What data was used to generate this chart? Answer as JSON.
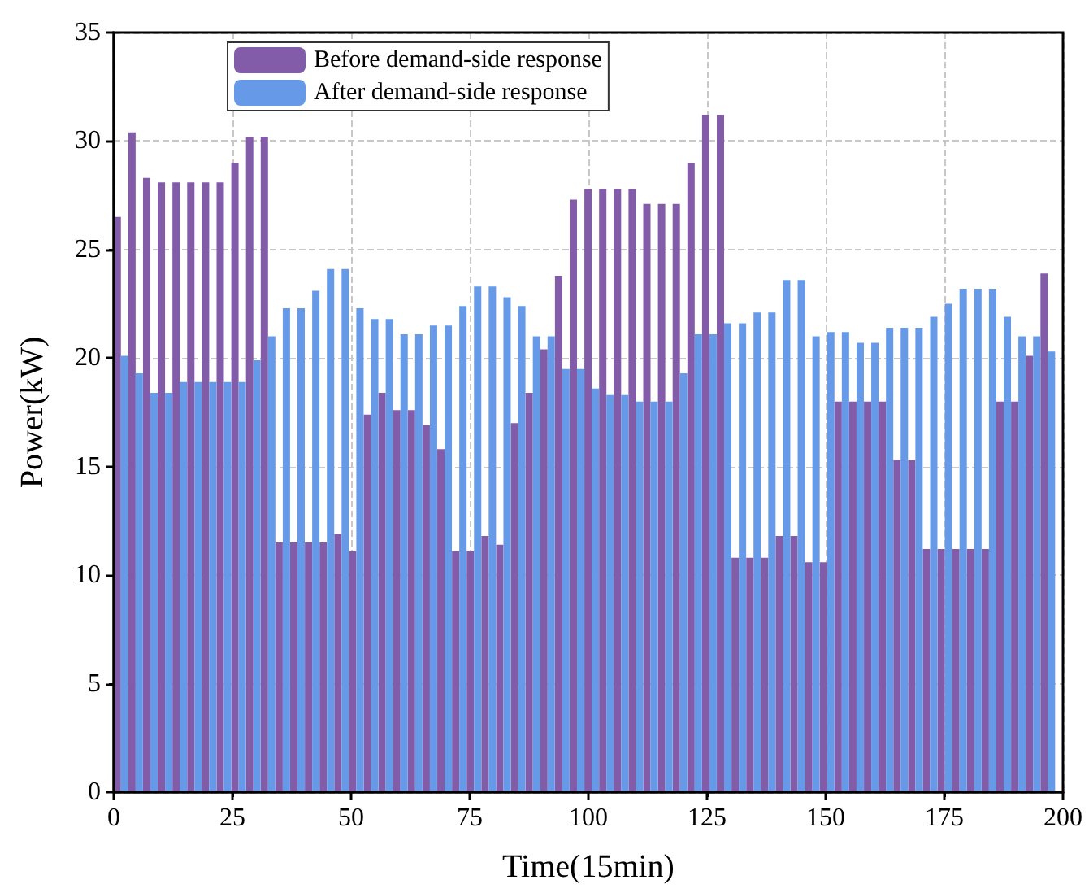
{
  "chart_data": {
    "type": "bar",
    "xlabel": "Time(15min)",
    "ylabel": "Power(kW)",
    "x": [
      1.5,
      4.6,
      7.7,
      10.8,
      13.9,
      17,
      20.1,
      23.2,
      26.3,
      29.4,
      32.5,
      35.6,
      38.7,
      41.8,
      44.9,
      48,
      51.1,
      54.2,
      57.3,
      60.4,
      63.5,
      66.6,
      69.7,
      72.8,
      75.9,
      79,
      82.1,
      85.2,
      88.3,
      91.4,
      94.5,
      97.6,
      100.7,
      103.8,
      106.9,
      110,
      113.1,
      116.2,
      119.3,
      122.4,
      125.5,
      128.6,
      131.7,
      134.8,
      137.9,
      141,
      144.1,
      147.2,
      150.3,
      153.4,
      156.5,
      159.6,
      162.7,
      165.8,
      168.9,
      172,
      175.1,
      178.2,
      181.3,
      184.4,
      187.5,
      190.6,
      193.7,
      196.8
    ],
    "series": [
      {
        "name": "Before demand-side response",
        "color": "#825ca8",
        "values": [
          26.5,
          30.4,
          28.3,
          28.1,
          28.1,
          28.1,
          28.1,
          28.1,
          29.0,
          30.2,
          30.2,
          11.5,
          11.5,
          11.5,
          11.5,
          11.9,
          11.1,
          17.4,
          18.4,
          17.6,
          17.6,
          16.9,
          15.8,
          11.1,
          11.1,
          11.8,
          11.4,
          17.0,
          18.4,
          20.4,
          23.8,
          27.3,
          27.8,
          27.8,
          27.8,
          27.8,
          27.1,
          27.1,
          27.1,
          29.0,
          31.2,
          31.2,
          10.8,
          10.8,
          10.8,
          11.8,
          11.8,
          10.6,
          10.6,
          18.0,
          18.0,
          18.0,
          18.0,
          15.3,
          15.3,
          11.2,
          11.2,
          11.2,
          11.2,
          11.2,
          18.0,
          18.0,
          20.1,
          23.9
        ]
      },
      {
        "name": "After demand-side response",
        "color": "#6699e8",
        "values": [
          20.1,
          19.3,
          18.4,
          18.4,
          18.9,
          18.9,
          18.9,
          18.9,
          18.9,
          19.9,
          21.0,
          22.3,
          22.3,
          23.1,
          24.1,
          24.1,
          22.3,
          21.8,
          21.8,
          21.1,
          21.1,
          21.5,
          21.5,
          22.4,
          23.3,
          23.3,
          22.8,
          22.4,
          21.0,
          21.0,
          19.5,
          19.5,
          18.6,
          18.3,
          18.3,
          18.0,
          18.0,
          18.0,
          19.3,
          21.1,
          21.1,
          21.6,
          21.6,
          22.1,
          22.1,
          23.6,
          23.6,
          21.0,
          21.2,
          21.2,
          20.7,
          20.7,
          21.4,
          21.4,
          21.4,
          21.9,
          22.5,
          23.2,
          23.2,
          23.2,
          21.9,
          21.0,
          21.0,
          20.3
        ]
      }
    ],
    "xlim": [
      0,
      200
    ],
    "xticks": [
      0,
      25,
      50,
      75,
      100,
      125,
      150,
      175,
      200
    ],
    "ylim": [
      0,
      35
    ],
    "yticks": [
      0,
      5,
      10,
      15,
      20,
      25,
      30,
      35
    ],
    "grid": true,
    "legend": "top left"
  }
}
